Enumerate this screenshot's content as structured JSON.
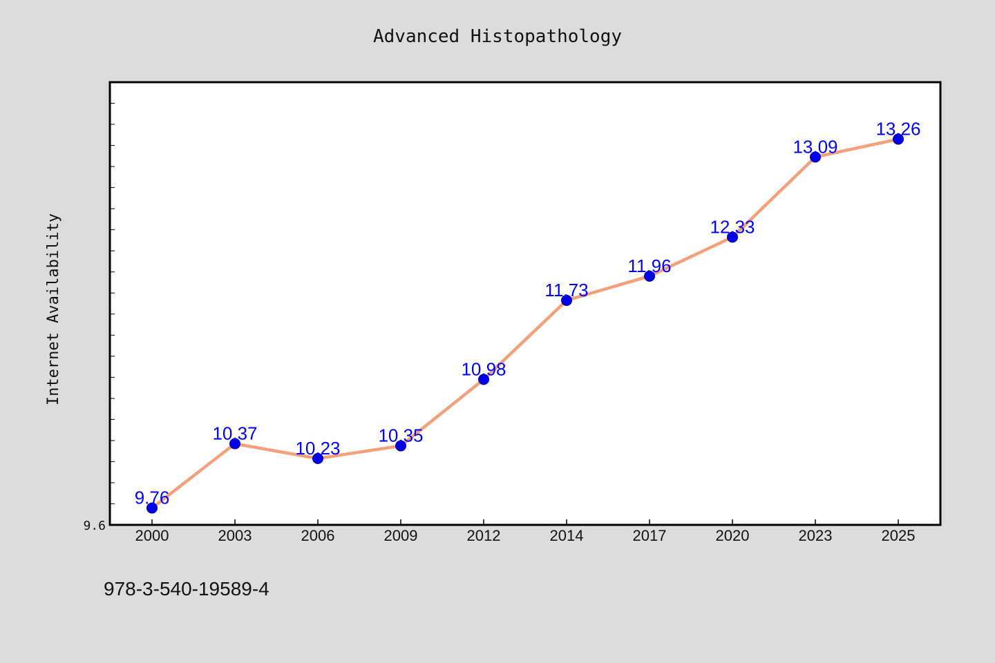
{
  "chart_data": {
    "type": "line",
    "title": "Advanced Histopathology",
    "xlabel": "",
    "ylabel": "Internet Availability",
    "categories": [
      "2000",
      "2003",
      "2006",
      "2009",
      "2012",
      "2014",
      "2017",
      "2020",
      "2023",
      "2025"
    ],
    "series": [
      {
        "values": [
          9.76,
          10.37,
          10.23,
          10.35,
          10.98,
          11.73,
          11.96,
          12.33,
          13.09,
          13.26
        ],
        "labels": [
          "9.76",
          "10.37",
          "10.23",
          "10.35",
          "10.98",
          "11.73",
          "11.96",
          "12.33",
          "13.09",
          "13.26"
        ]
      }
    ],
    "ylim": [
      9.6,
      13.8
    ],
    "ytick_labels": [
      "9.6"
    ],
    "grid": false,
    "colors": {
      "line": "#f4a07a",
      "marker": "#0000ee",
      "label": "#0000ff",
      "background": "#dcdcdc",
      "plot_background": "#ffffff"
    }
  },
  "footer": {
    "isbn": "978-3-540-19589-4"
  }
}
